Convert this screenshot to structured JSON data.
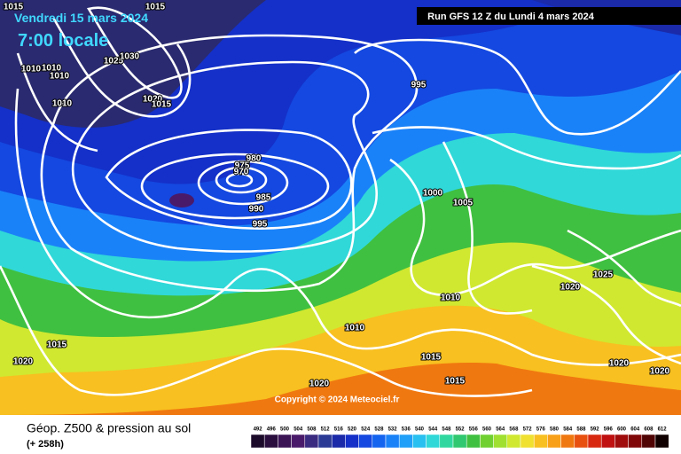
{
  "header": {
    "run": "Run GFS 12 Z du Lundi 4 mars 2024",
    "date": "Vendredi 15 mars 2024",
    "time": "7:00 locale"
  },
  "isobar_labels": [
    1015,
    1015,
    1010,
    1010,
    1010,
    1025,
    1030,
    1010,
    1020,
    1015,
    995,
    980,
    975,
    970,
    985,
    990,
    995,
    1000,
    1005,
    1010,
    1020,
    1025,
    1010,
    1015,
    1020,
    1015,
    1015,
    1020,
    1020,
    1020
  ],
  "copyright": "Copyright © 2024 Meteociel.fr",
  "footer": {
    "title": "Géop. Z500 & pression au sol",
    "lead": "(+ 258h)"
  },
  "legend": {
    "ticks": [
      492,
      496,
      500,
      504,
      508,
      512,
      516,
      520,
      524,
      528,
      532,
      536,
      540,
      544,
      548,
      552,
      556,
      560,
      564,
      568,
      572,
      576,
      580,
      584,
      588,
      592,
      596,
      600,
      604,
      608,
      612
    ],
    "colors": [
      "#1c0a2a",
      "#2a0f3e",
      "#3a1455",
      "#4a1a6a",
      "#3a2a80",
      "#2a3a95",
      "#1a2aa8",
      "#1430c8",
      "#1448e0",
      "#1464f0",
      "#1a82f8",
      "#20a0f8",
      "#28c0f0",
      "#30d8d8",
      "#30d8a0",
      "#30c870",
      "#40c040",
      "#70d030",
      "#a0e030",
      "#d0e830",
      "#f0e030",
      "#f8c020",
      "#f8a018",
      "#f07810",
      "#e85010",
      "#d82810",
      "#c01010",
      "#a00c0c",
      "#800808",
      "#500404",
      "#100000"
    ]
  }
}
